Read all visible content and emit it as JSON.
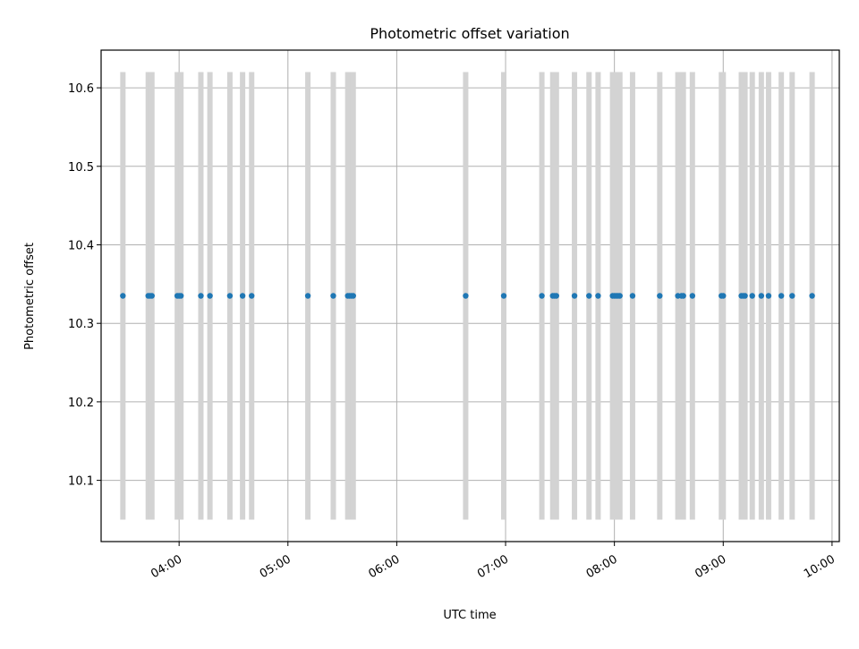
{
  "chart_data": {
    "type": "scatter",
    "title": "Photometric offset variation",
    "xlabel": "UTC time",
    "ylabel": "Photometric offset",
    "xlim": [
      "03:17",
      "10:04"
    ],
    "ylim": [
      10.022,
      10.648
    ],
    "grid": true,
    "x_tick_labels": [
      "04:00",
      "05:00",
      "06:00",
      "07:00",
      "08:00",
      "09:00",
      "10:00"
    ],
    "y_tick_labels": [
      "10.1",
      "10.2",
      "10.3",
      "10.4",
      "10.5",
      "10.6"
    ],
    "y_ticks": [
      10.1,
      10.2,
      10.3,
      10.4,
      10.5,
      10.6
    ],
    "colors": {
      "points": "#1f77b4",
      "bars": "#d3d3d3",
      "grid": "#b0b0b0"
    },
    "bar_range": [
      10.05,
      10.62
    ],
    "x": [
      "03:29",
      "03:43",
      "03:44",
      "03:45",
      "03:59",
      "04:00",
      "04:01",
      "04:12",
      "04:17",
      "04:28",
      "04:35",
      "04:40",
      "05:11",
      "05:25",
      "05:33",
      "05:34",
      "05:35",
      "05:36",
      "06:38",
      "06:59",
      "07:20",
      "07:26",
      "07:27",
      "07:28",
      "07:38",
      "07:46",
      "07:51",
      "07:59",
      "08:00",
      "08:01",
      "08:02",
      "08:03",
      "08:10",
      "08:25",
      "08:35",
      "08:37",
      "08:38",
      "08:43",
      "08:59",
      "09:00",
      "09:10",
      "09:11",
      "09:12",
      "09:16",
      "09:21",
      "09:25",
      "09:32",
      "09:38",
      "09:49"
    ],
    "y": [
      10.335,
      10.335,
      10.335,
      10.335,
      10.335,
      10.335,
      10.335,
      10.335,
      10.335,
      10.335,
      10.335,
      10.335,
      10.335,
      10.335,
      10.335,
      10.335,
      10.335,
      10.335,
      10.335,
      10.335,
      10.335,
      10.335,
      10.335,
      10.335,
      10.335,
      10.335,
      10.335,
      10.335,
      10.335,
      10.335,
      10.335,
      10.335,
      10.335,
      10.335,
      10.335,
      10.335,
      10.335,
      10.335,
      10.335,
      10.335,
      10.335,
      10.335,
      10.335,
      10.335,
      10.335,
      10.335,
      10.335,
      10.335,
      10.335
    ]
  }
}
